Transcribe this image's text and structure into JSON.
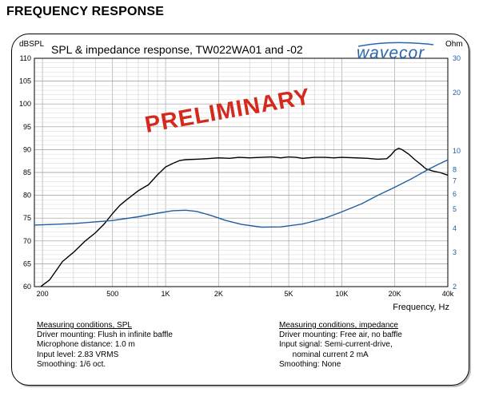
{
  "heading": "FREQUENCY RESPONSE",
  "chart_data": {
    "type": "line",
    "title": "SPL & impedance response, TW022WA01 and -02",
    "xlabel": "Frequency, Hz",
    "ylabel_left": "dBSPL",
    "ylabel_right": "Ohm",
    "x_scale": "log",
    "xlim": [
      180,
      40000
    ],
    "ylim_left": [
      60,
      110
    ],
    "ylim_right": [
      2,
      30
    ],
    "y_scale_right": "log",
    "grid": true,
    "x_ticks": [
      "200",
      "500",
      "1K",
      "2K",
      "5K",
      "10K",
      "20K",
      "40k"
    ],
    "x_tick_values": [
      200,
      500,
      1000,
      2000,
      5000,
      10000,
      20000,
      40000
    ],
    "y_ticks_left": [
      "60",
      "65",
      "70",
      "75",
      "80",
      "85",
      "90",
      "95",
      "100",
      "105",
      "110"
    ],
    "y_tick_values_left": [
      60,
      65,
      70,
      75,
      80,
      85,
      90,
      95,
      100,
      105,
      110
    ],
    "y_ticks_right": [
      "2",
      "3",
      "4",
      "5",
      "6",
      "7",
      "8",
      "10",
      "20",
      "30"
    ],
    "y_tick_values_right": [
      2,
      3,
      4,
      5,
      6,
      7,
      8,
      10,
      20,
      30
    ],
    "watermark": "PRELIMINARY",
    "logo": "wavecor",
    "series": [
      {
        "axis": "left",
        "color": "#000000",
        "x": [
          180,
          220,
          260,
          300,
          350,
          400,
          450,
          500,
          550,
          600,
          700,
          800,
          900,
          1000,
          1100,
          1200,
          1300,
          1500,
          1700,
          2000,
          2300,
          2600,
          3000,
          3500,
          4000,
          4500,
          5000,
          5500,
          6000,
          7000,
          8000,
          9000,
          10000,
          12000,
          14000,
          16000,
          18000,
          19000,
          20000,
          21000,
          22000,
          24000,
          26000,
          28000,
          30000,
          33000,
          36000,
          40000
        ],
        "y": [
          57.5,
          61.5,
          65.5,
          67.5,
          70.0,
          71.8,
          73.8,
          76.0,
          77.8,
          79.0,
          81.0,
          82.3,
          84.5,
          86.2,
          87.0,
          87.6,
          87.8,
          87.9,
          88.0,
          88.2,
          88.1,
          88.3,
          88.2,
          88.3,
          88.4,
          88.2,
          88.4,
          88.3,
          88.1,
          88.3,
          88.3,
          88.2,
          88.3,
          88.2,
          88.1,
          87.9,
          88.0,
          88.8,
          89.8,
          90.3,
          90.0,
          89.0,
          87.8,
          86.8,
          85.8,
          85.3,
          85.0,
          84.4
        ]
      },
      {
        "axis": "right",
        "color": "#1f5f9f",
        "x": [
          180,
          300,
          500,
          700,
          900,
          1100,
          1300,
          1500,
          1800,
          2200,
          2700,
          3500,
          4500,
          6000,
          8000,
          10000,
          13000,
          16000,
          20000,
          25000,
          30000,
          35000,
          40000
        ],
        "y": [
          4.15,
          4.22,
          4.38,
          4.58,
          4.78,
          4.92,
          4.95,
          4.88,
          4.66,
          4.38,
          4.18,
          4.05,
          4.06,
          4.2,
          4.5,
          4.85,
          5.35,
          5.9,
          6.5,
          7.2,
          7.9,
          8.5,
          9.0
        ]
      }
    ]
  },
  "conditions_spl": {
    "title": "Measuring conditions, SPL",
    "lines": [
      "Driver mounting: Flush in infinite baffle",
      "Microphone distance: 1.0 m",
      "Input level: 2.83 VRMS",
      "Smoothing: 1/6 oct."
    ]
  },
  "conditions_impedance": {
    "title": "Measuring conditions, impedance",
    "lines": [
      "Driver mounting: Free air, no baffle",
      "Input signal: Semi-current-drive,",
      "      nominal current 2 mA",
      "Smoothing: None"
    ]
  }
}
